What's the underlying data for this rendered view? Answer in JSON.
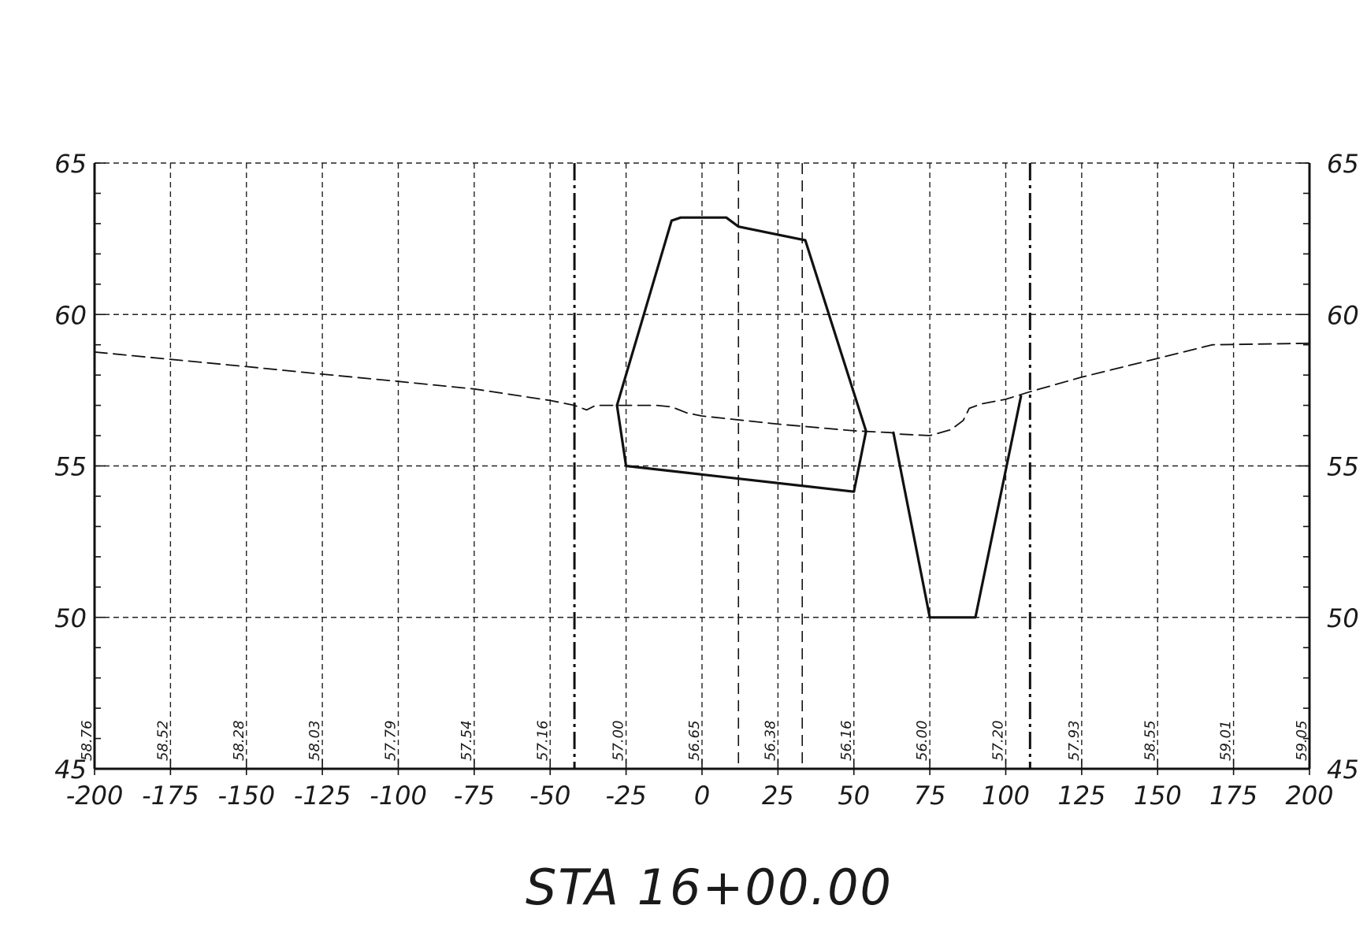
{
  "chart_data": {
    "type": "line",
    "title": "STA 16+00.00",
    "xlim": [
      -200,
      200
    ],
    "ylim": [
      45,
      65
    ],
    "x_ticks": [
      -200,
      -175,
      -150,
      -125,
      -100,
      -75,
      -50,
      -25,
      0,
      25,
      50,
      75,
      100,
      125,
      150,
      175,
      200
    ],
    "x_tick_labels": [
      "-200",
      "-175",
      "-150",
      "-125",
      "-100",
      "-75",
      "-50",
      "-25",
      "0",
      "25",
      "50",
      "75",
      "100",
      "125",
      "150",
      "175",
      "200"
    ],
    "y_ticks": [
      45,
      50,
      55,
      60,
      65
    ],
    "y_tick_labels": [
      "45",
      "50",
      "55",
      "60",
      "65"
    ],
    "grid": true,
    "ground_elevation_labels": [
      {
        "x": -200,
        "label": "58.76"
      },
      {
        "x": -175,
        "label": "58.52"
      },
      {
        "x": -150,
        "label": "58.28"
      },
      {
        "x": -125,
        "label": "58.03"
      },
      {
        "x": -100,
        "label": "57.79"
      },
      {
        "x": -75,
        "label": "57.54"
      },
      {
        "x": -50,
        "label": "57.16"
      },
      {
        "x": -25,
        "label": "57.00"
      },
      {
        "x": 0,
        "label": "56.65"
      },
      {
        "x": 25,
        "label": "56.38"
      },
      {
        "x": 50,
        "label": "56.16"
      },
      {
        "x": 75,
        "label": "56.00"
      },
      {
        "x": 100,
        "label": "57.20"
      },
      {
        "x": 125,
        "label": "57.93"
      },
      {
        "x": 150,
        "label": "58.55"
      },
      {
        "x": 175,
        "label": "59.01"
      },
      {
        "x": 200,
        "label": "59.05"
      }
    ],
    "vertical_reference_lines": [
      {
        "x": -42,
        "style": "dash-dot"
      },
      {
        "x": 108,
        "style": "dash-dot"
      },
      {
        "x": 12,
        "style": "dashed"
      },
      {
        "x": 33,
        "style": "dashed"
      }
    ],
    "series": [
      {
        "style": "dashed",
        "points": [
          [
            -200,
            58.76
          ],
          [
            -175,
            58.52
          ],
          [
            -150,
            58.28
          ],
          [
            -125,
            58.03
          ],
          [
            -100,
            57.79
          ],
          [
            -75,
            57.54
          ],
          [
            -50,
            57.16
          ],
          [
            -42,
            57.0
          ],
          [
            -38,
            56.85
          ],
          [
            -35,
            57.0
          ],
          [
            -25,
            57.0
          ],
          [
            -15,
            57.0
          ],
          [
            -10,
            56.95
          ],
          [
            -5,
            56.75
          ],
          [
            0,
            56.65
          ],
          [
            25,
            56.38
          ],
          [
            50,
            56.16
          ],
          [
            62,
            56.1
          ],
          [
            65,
            56.05
          ],
          [
            75,
            56.0
          ],
          [
            82,
            56.2
          ],
          [
            86,
            56.5
          ],
          [
            88,
            56.9
          ],
          [
            92,
            57.05
          ],
          [
            100,
            57.2
          ],
          [
            108,
            57.45
          ],
          [
            125,
            57.93
          ],
          [
            150,
            58.55
          ],
          [
            168,
            59.0
          ],
          [
            175,
            59.01
          ],
          [
            200,
            59.05
          ]
        ]
      },
      {
        "style": "solid",
        "points": [
          [
            -10,
            63.1
          ],
          [
            -7,
            63.2
          ],
          [
            8,
            63.2
          ],
          [
            12,
            62.9
          ],
          [
            34,
            62.45
          ],
          [
            54,
            56.15
          ],
          [
            50,
            54.15
          ],
          [
            -25,
            55.0
          ],
          [
            -28,
            57.0
          ],
          [
            -10,
            63.1
          ]
        ]
      },
      {
        "style": "solid",
        "points": [
          [
            63,
            56.1
          ],
          [
            75,
            50.0
          ],
          [
            90,
            50.0
          ],
          [
            105,
            57.3
          ]
        ]
      }
    ]
  }
}
